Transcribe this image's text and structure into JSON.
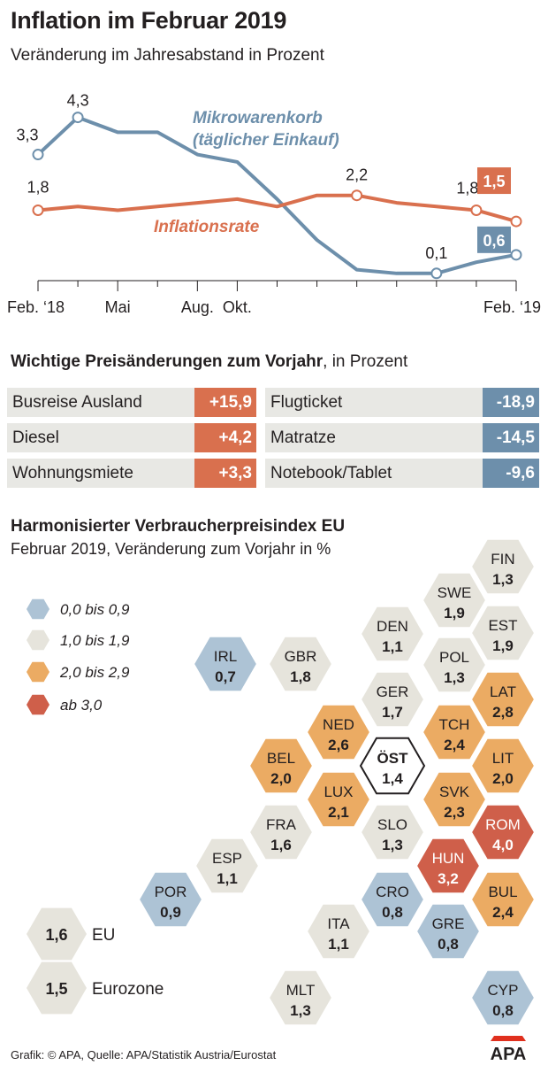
{
  "title": "Inflation im Februar 2019",
  "subtitle": "Veränderung im Jahresabstand in Prozent",
  "chart_data": {
    "type": "line",
    "x_ticks": [
      "Feb. ‘18",
      "",
      "Mai",
      "",
      "Aug.",
      "Okt.",
      "",
      "",
      "",
      "",
      "",
      "",
      "Feb. ‘19"
    ],
    "x_tick_labels_shown": [
      "Feb. ‘18",
      "Mai",
      "Aug.",
      "Okt.",
      "Feb. ‘19"
    ],
    "series": [
      {
        "name": "Mikrowarenkorb",
        "name_line2": "(täglicher Einkauf)",
        "color": "#6d8fab",
        "values": [
          3.3,
          4.3,
          3.9,
          3.9,
          3.3,
          3.1,
          2.1,
          1.0,
          0.2,
          0.1,
          0.1,
          0.4,
          0.6
        ],
        "labels": [
          {
            "index": 0,
            "text": "3,3"
          },
          {
            "index": 1,
            "text": "4,3"
          },
          {
            "index": 10,
            "text": "0,1"
          },
          {
            "index": 12,
            "text": "0,6",
            "boxed": true
          }
        ]
      },
      {
        "name": "Inflationsrate",
        "color": "#d9704e",
        "values": [
          1.8,
          1.9,
          1.8,
          1.9,
          2.0,
          2.1,
          1.9,
          2.2,
          2.2,
          2.0,
          1.9,
          1.8,
          1.5
        ],
        "labels": [
          {
            "index": 0,
            "text": "1,8"
          },
          {
            "index": 8,
            "text": "2,2"
          },
          {
            "index": 11,
            "text": "1,8"
          },
          {
            "index": 12,
            "text": "1,5",
            "boxed": true
          }
        ]
      }
    ],
    "ylim": [
      0,
      4.6
    ]
  },
  "prices": {
    "title_bold": "Wichtige Preisänderungen zum Vorjahr",
    "title_rest": ", in Prozent",
    "up": [
      {
        "label": "Busreise Ausland",
        "value": "+15,9"
      },
      {
        "label": "Diesel",
        "value": "+4,2"
      },
      {
        "label": "Wohnungsmiete",
        "value": "+3,3"
      }
    ],
    "down": [
      {
        "label": "Flugticket",
        "value": "-18,9"
      },
      {
        "label": "Matratze",
        "value": "-14,5"
      },
      {
        "label": "Notebook/Tablet",
        "value": "-9,6"
      }
    ],
    "up_color": "#d9704e",
    "down_color": "#6d8fab"
  },
  "hicp": {
    "title": "Harmonisierter Verbraucherpreisindex EU",
    "subtitle": "Februar 2019, Veränderung zum Vorjahr in %",
    "legend": [
      {
        "label": "0,0 bis 0,9",
        "color": "#adc3d5"
      },
      {
        "label": "1,0 bis 1,9",
        "color": "#e6e4dc"
      },
      {
        "label": "2,0 bis 2,9",
        "color": "#ebab63"
      },
      {
        "label": "ab 3,0",
        "color": "#cf5f4a"
      }
    ],
    "countries": [
      {
        "code": "FIN",
        "value": "1,3",
        "value_num": 1.3
      },
      {
        "code": "SWE",
        "value": "1,9",
        "value_num": 1.9
      },
      {
        "code": "EST",
        "value": "1,9",
        "value_num": 1.9
      },
      {
        "code": "DEN",
        "value": "1,1",
        "value_num": 1.1
      },
      {
        "code": "POL",
        "value": "1,3",
        "value_num": 1.3
      },
      {
        "code": "IRL",
        "value": "0,7",
        "value_num": 0.7
      },
      {
        "code": "GBR",
        "value": "1,8",
        "value_num": 1.8
      },
      {
        "code": "GER",
        "value": "1,7",
        "value_num": 1.7
      },
      {
        "code": "LAT",
        "value": "2,8",
        "value_num": 2.8
      },
      {
        "code": "NED",
        "value": "2,6",
        "value_num": 2.6
      },
      {
        "code": "TCH",
        "value": "2,4",
        "value_num": 2.4
      },
      {
        "code": "BEL",
        "value": "2,0",
        "value_num": 2.0
      },
      {
        "code": "ÖST",
        "value": "1,4",
        "value_num": 1.4,
        "highlight": true
      },
      {
        "code": "LIT",
        "value": "2,0",
        "value_num": 2.0
      },
      {
        "code": "LUX",
        "value": "2,1",
        "value_num": 2.1
      },
      {
        "code": "SVK",
        "value": "2,3",
        "value_num": 2.3
      },
      {
        "code": "FRA",
        "value": "1,6",
        "value_num": 1.6
      },
      {
        "code": "SLO",
        "value": "1,3",
        "value_num": 1.3
      },
      {
        "code": "ROM",
        "value": "4,0",
        "value_num": 4.0
      },
      {
        "code": "ESP",
        "value": "1,1",
        "value_num": 1.1
      },
      {
        "code": "HUN",
        "value": "3,2",
        "value_num": 3.2
      },
      {
        "code": "POR",
        "value": "0,9",
        "value_num": 0.9
      },
      {
        "code": "CRO",
        "value": "0,8",
        "value_num": 0.8
      },
      {
        "code": "BUL",
        "value": "2,4",
        "value_num": 2.4
      },
      {
        "code": "ITA",
        "value": "1,1",
        "value_num": 1.1
      },
      {
        "code": "GRE",
        "value": "0,8",
        "value_num": 0.8
      },
      {
        "code": "MLT",
        "value": "1,3",
        "value_num": 1.3
      },
      {
        "code": "CYP",
        "value": "0,8",
        "value_num": 0.8
      }
    ],
    "aggregates": [
      {
        "code": "EU",
        "value": "1,6",
        "value_num": 1.6
      },
      {
        "code": "Eurozone",
        "value": "1,5",
        "value_num": 1.5
      }
    ]
  },
  "footer": "Grafik: © APA, Quelle: APA/Statistik Austria/Eurostat",
  "logo_text": "APA"
}
